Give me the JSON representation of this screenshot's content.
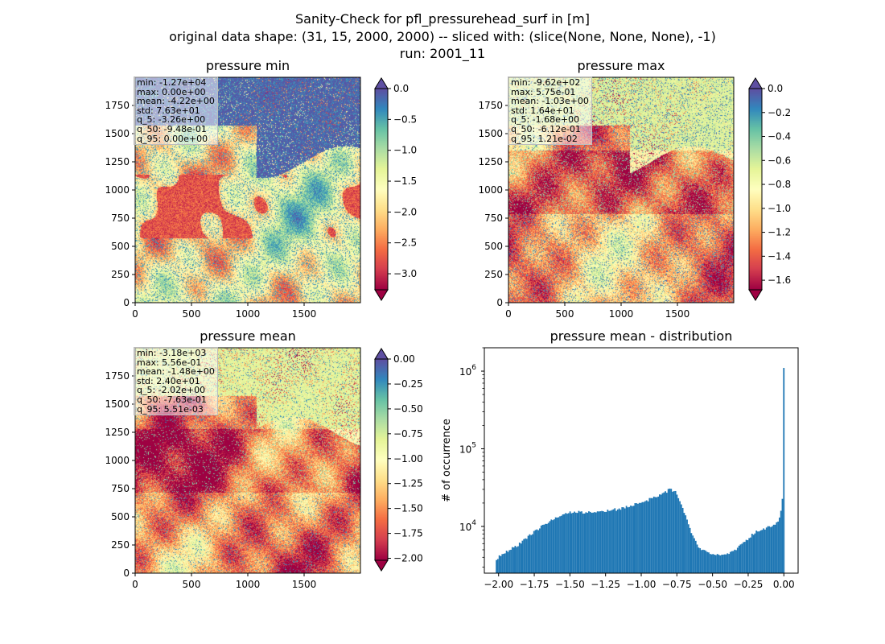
{
  "figure": {
    "title_lines": [
      "Sanity-Check for pfl_pressurehead_surf in [m]",
      "original data shape: (31, 15, 2000, 2000) -- sliced with: (slice(None, None, None), -1)",
      "run: 2001_11"
    ]
  },
  "panels": [
    {
      "title": "pressure min",
      "stats": [
        "min: -1.27e+04",
        "max: 0.00e+00",
        "mean: -4.22e+00",
        "std: 7.63e+01",
        "q_5: -3.26e+00",
        "q_50: -9.48e-01",
        "q_95: 0.00e+00"
      ],
      "x_ticks": [
        "0",
        "500",
        "1000",
        "1500"
      ],
      "y_ticks": [
        "0",
        "250",
        "500",
        "750",
        "1000",
        "1250",
        "1500",
        "1750"
      ],
      "colorbar_ticks": [
        "0.0",
        "−0.5",
        "−1.0",
        "−1.5",
        "−2.0",
        "−2.5",
        "−3.0"
      ]
    },
    {
      "title": "pressure max",
      "stats": [
        "min: -9.62e+02",
        "max: 5.75e-01",
        "mean: -1.03e+00",
        "std: 1.64e+01",
        "q_5: -1.68e+00",
        "q_50: -6.12e-01",
        "q_95: 1.21e-02"
      ],
      "x_ticks": [
        "0",
        "500",
        "1000",
        "1500"
      ],
      "y_ticks": [
        "0",
        "250",
        "500",
        "750",
        "1000",
        "1250",
        "1500",
        "1750"
      ],
      "colorbar_ticks": [
        "0.0",
        "−0.2",
        "−0.4",
        "−0.6",
        "−0.8",
        "−1.0",
        "−1.2",
        "−1.4",
        "−1.6"
      ]
    },
    {
      "title": "pressure mean",
      "stats": [
        "min: -3.18e+03",
        "max: 5.56e-01",
        "mean: -1.48e+00",
        "std: 2.40e+01",
        "q_5: -2.02e+00",
        "q_50: -7.63e-01",
        "q_95: 5.51e-03"
      ],
      "x_ticks": [
        "0",
        "500",
        "1000",
        "1500"
      ],
      "y_ticks": [
        "0",
        "250",
        "500",
        "750",
        "1000",
        "1250",
        "1500",
        "1750"
      ],
      "colorbar_ticks": [
        "0.00",
        "−0.25",
        "−0.50",
        "−0.75",
        "−1.00",
        "−1.25",
        "−1.50",
        "−1.75",
        "−2.00"
      ]
    }
  ],
  "histogram": {
    "title": "pressure mean - distribution",
    "ylabel": "# of occurrence",
    "x_ticks": [
      "−2.00",
      "−1.75",
      "−1.50",
      "−1.25",
      "−1.00",
      "−0.75",
      "−0.50",
      "−0.25",
      "0.00"
    ],
    "y_ticks": [
      "10",
      "10",
      "10"
    ],
    "y_tick_exponents": [
      "4",
      "5",
      "6"
    ]
  },
  "chart_data": [
    {
      "type": "heatmap",
      "title": "pressure min",
      "xlim": [
        0,
        2000
      ],
      "ylim": [
        0,
        2000
      ],
      "x_ticks": [
        0,
        500,
        1000,
        1500
      ],
      "y_ticks": [
        0,
        250,
        500,
        750,
        1000,
        1250,
        1500,
        1750
      ],
      "colormap": "Spectral",
      "vmin": -3.26,
      "vmax": 0.0,
      "colorbar_extend": "both",
      "colorbar_ticks": [
        0.0,
        -0.5,
        -1.0,
        -1.5,
        -2.0,
        -2.5,
        -3.0
      ]
    },
    {
      "type": "heatmap",
      "title": "pressure max",
      "xlim": [
        0,
        2000
      ],
      "ylim": [
        0,
        2000
      ],
      "x_ticks": [
        0,
        500,
        1000,
        1500
      ],
      "y_ticks": [
        0,
        250,
        500,
        750,
        1000,
        1250,
        1500,
        1750
      ],
      "colormap": "Spectral",
      "vmin": -1.68,
      "vmax": 0.0,
      "colorbar_extend": "both",
      "colorbar_ticks": [
        0.0,
        -0.2,
        -0.4,
        -0.6,
        -0.8,
        -1.0,
        -1.2,
        -1.4,
        -1.6
      ]
    },
    {
      "type": "heatmap",
      "title": "pressure mean",
      "xlim": [
        0,
        2000
      ],
      "ylim": [
        0,
        2000
      ],
      "x_ticks": [
        0,
        500,
        1000,
        1500
      ],
      "y_ticks": [
        0,
        250,
        500,
        750,
        1000,
        1250,
        1500,
        1750
      ],
      "colormap": "Spectral",
      "vmin": -2.02,
      "vmax": 0.0,
      "colorbar_extend": "both",
      "colorbar_ticks": [
        0.0,
        -0.25,
        -0.5,
        -0.75,
        -1.0,
        -1.25,
        -1.5,
        -1.75,
        -2.0
      ]
    },
    {
      "type": "bar",
      "title": "pressure mean - distribution",
      "xlabel": "",
      "ylabel": "# of occurrence",
      "yscale": "log",
      "xlim": [
        -2.1,
        0.1
      ],
      "ylim": [
        2500,
        2000000
      ],
      "x_ticks": [
        -2.0,
        -1.75,
        -1.5,
        -1.25,
        -1.0,
        -0.75,
        -0.5,
        -0.25,
        0.0
      ],
      "y_ticks": [
        10000,
        100000,
        1000000
      ],
      "color": "#1f77b4",
      "bin_range": [
        -2.02,
        0.005
      ],
      "bin_count": 200,
      "profile_points": [
        [
          -2.02,
          3800
        ],
        [
          -1.95,
          4600
        ],
        [
          -1.85,
          6000
        ],
        [
          -1.75,
          8500
        ],
        [
          -1.65,
          11500
        ],
        [
          -1.55,
          14500
        ],
        [
          -1.45,
          15500
        ],
        [
          -1.35,
          15000
        ],
        [
          -1.25,
          15500
        ],
        [
          -1.15,
          17000
        ],
        [
          -1.05,
          19000
        ],
        [
          -0.95,
          22000
        ],
        [
          -0.85,
          26000
        ],
        [
          -0.8,
          30000
        ],
        [
          -0.76,
          28000
        ],
        [
          -0.72,
          20000
        ],
        [
          -0.68,
          12500
        ],
        [
          -0.64,
          7500
        ],
        [
          -0.6,
          5500
        ],
        [
          -0.55,
          4700
        ],
        [
          -0.5,
          4400
        ],
        [
          -0.45,
          4300
        ],
        [
          -0.4,
          4400
        ],
        [
          -0.35,
          4900
        ],
        [
          -0.3,
          5800
        ],
        [
          -0.25,
          7000
        ],
        [
          -0.2,
          8500
        ],
        [
          -0.12,
          9500
        ],
        [
          -0.06,
          10500
        ],
        [
          -0.03,
          13000
        ],
        [
          -0.015,
          18000
        ],
        [
          -0.005,
          28000
        ],
        [
          0.0,
          1100000
        ]
      ]
    }
  ]
}
